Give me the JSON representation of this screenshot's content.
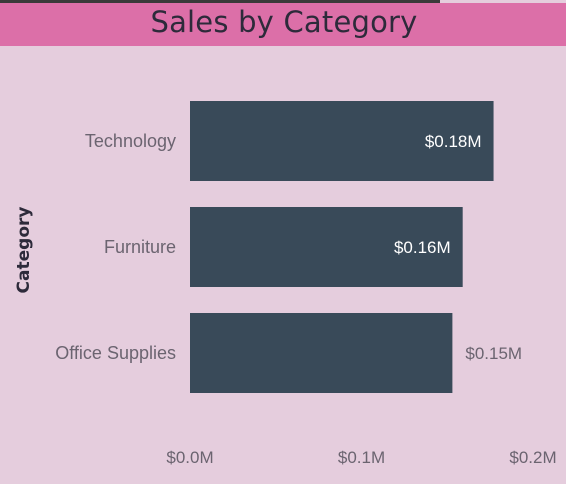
{
  "title": "Sales by Category",
  "colors": {
    "bar": "#394a59",
    "header": "#dc6fa8",
    "background": "#e5cddd"
  },
  "chart_data": {
    "type": "bar",
    "orientation": "horizontal",
    "title": "Sales by Category",
    "xlabel": "",
    "ylabel": "Category",
    "xlim": [
      0,
      0.2
    ],
    "grid": false,
    "categories": [
      "Technology",
      "Furniture",
      "Office Supplies"
    ],
    "values": [
      0.177,
      0.159,
      0.153
    ],
    "value_labels": [
      "$0.18M",
      "$0.16M",
      "$0.15M"
    ],
    "x_ticks": [
      0,
      0.1,
      0.2
    ],
    "x_tick_labels": [
      "$0.0M",
      "$0.1M",
      "$0.2M"
    ]
  }
}
